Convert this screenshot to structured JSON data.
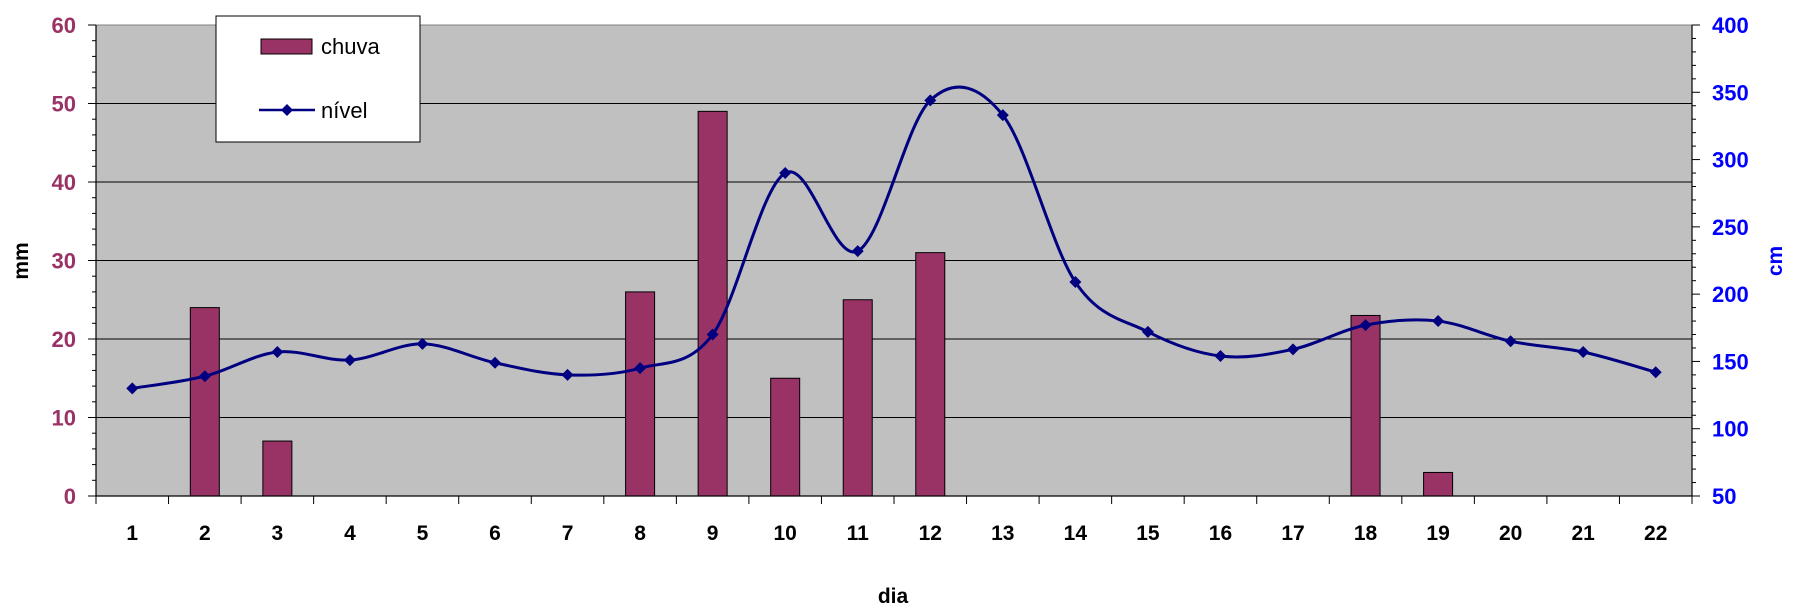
{
  "chart_data": {
    "type": "bar+line",
    "xlabel": "dia",
    "categories": [
      "1",
      "2",
      "3",
      "4",
      "5",
      "6",
      "7",
      "8",
      "9",
      "10",
      "11",
      "12",
      "13",
      "14",
      "15",
      "16",
      "17",
      "18",
      "19",
      "20",
      "21",
      "22"
    ],
    "series": [
      {
        "name": "chuva",
        "type": "bar",
        "axis": "left",
        "color": "#993366",
        "values": [
          0,
          24,
          7,
          0,
          0,
          0,
          0,
          26,
          49,
          15,
          25,
          31,
          0,
          0,
          0,
          0,
          0,
          23,
          3,
          0,
          0,
          0
        ]
      },
      {
        "name": "nível",
        "type": "line",
        "axis": "right",
        "color": "#000080",
        "smooth": true,
        "marker": "diamond",
        "values": [
          130,
          139,
          157,
          151,
          163,
          149,
          140,
          145,
          170,
          290,
          232,
          344,
          333,
          209,
          172,
          154,
          159,
          177,
          180,
          165,
          157,
          142
        ]
      }
    ],
    "y_left": {
      "label": "mm",
      "ylim": [
        0,
        60
      ],
      "ticks": [
        "0",
        "10",
        "20",
        "30",
        "40",
        "50",
        "60"
      ],
      "color": "#993366"
    },
    "y_right": {
      "label": "cm",
      "ylim": [
        50,
        400
      ],
      "ticks": [
        "50",
        "100",
        "150",
        "200",
        "250",
        "300",
        "350",
        "400"
      ],
      "color": "#0000ff"
    },
    "grid": true,
    "plot_background": "#c0c0c0",
    "legend": "top-left"
  }
}
